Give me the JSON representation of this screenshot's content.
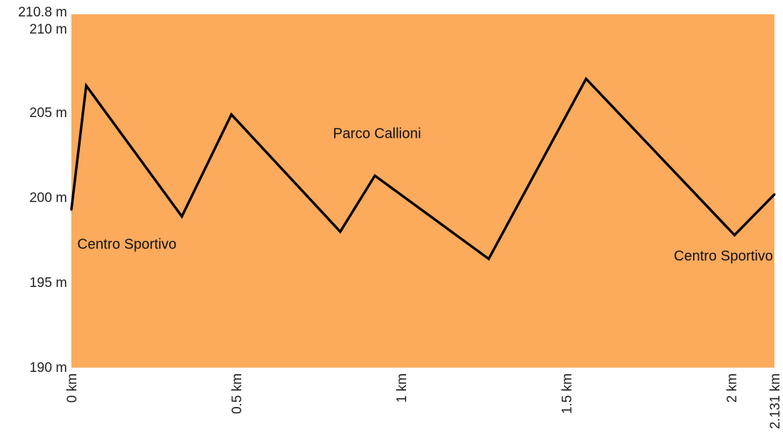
{
  "chart_data": {
    "type": "area",
    "colors": {
      "fill": "#fcaa5c",
      "line": "#000000",
      "text": "#222222"
    },
    "x_unit": "km",
    "y_unit": "m",
    "xlim": [
      0,
      2.131
    ],
    "ylim": [
      190,
      210.8
    ],
    "x_ticks": [
      "0 km",
      "0.5 km",
      "1 km",
      "1.5 km",
      "2 km",
      "2.131 km"
    ],
    "x_tick_values": [
      0,
      0.5,
      1,
      1.5,
      2,
      2.131
    ],
    "y_ticks": [
      "190 m",
      "195 m",
      "200 m",
      "205 m",
      "210 m",
      "210.8 m"
    ],
    "y_tick_values": [
      190,
      195,
      200,
      205,
      210,
      210.8
    ],
    "series": [
      {
        "x": [
          0,
          0.045,
          0.335,
          0.485,
          0.815,
          0.92,
          1.265,
          1.56,
          2.01,
          2.131
        ],
        "y": [
          199.3,
          206.6,
          198.9,
          204.9,
          198.0,
          201.3,
          196.4,
          207.0,
          197.8,
          200.2
        ]
      }
    ],
    "annotations": [
      {
        "text": "Centro Sportivo",
        "x": 0.005,
        "y": 197.3,
        "anchor": "start"
      },
      {
        "text": "Parco Callioni",
        "x": 0.78,
        "y": 203.8,
        "anchor": "start"
      },
      {
        "text": "Centro Sportivo",
        "x": 2.131,
        "y": 196.6,
        "anchor": "end"
      }
    ]
  }
}
